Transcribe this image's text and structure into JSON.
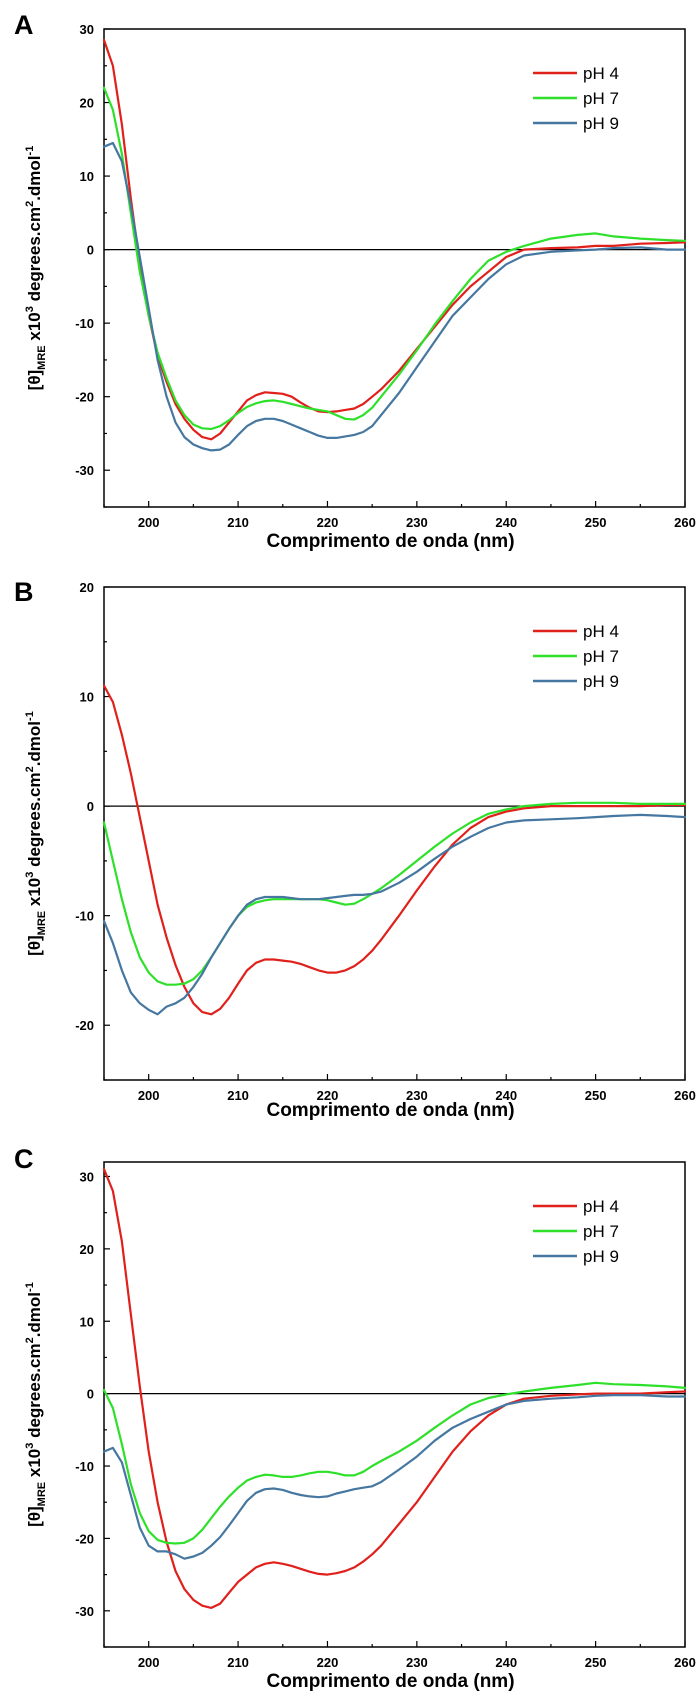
{
  "chart_data": [
    {
      "type": "line",
      "panel_label": "A",
      "xlabel": "Comprimento de onda (nm)",
      "ylabel_parts": {
        "main": "[θ]",
        "sub": "MRE",
        "times": " x10",
        "sup1": "3",
        "unit1": " degrees.cm",
        "sup2": "2",
        "unit2": ".dmol",
        "sup3": "-1"
      },
      "xlim": [
        195,
        260
      ],
      "ylim": [
        -35,
        30
      ],
      "xticks": [
        200,
        210,
        220,
        230,
        240,
        250,
        260
      ],
      "yticks": [
        -30,
        -20,
        -10,
        0,
        10,
        20,
        30
      ],
      "zero_line": true,
      "legend_position": "top-right",
      "series": [
        {
          "name": "pH 4",
          "color": "#e0201b",
          "x": [
            195,
            196,
            197,
            198,
            199,
            200,
            201,
            202,
            203,
            204,
            205,
            206,
            207,
            208,
            209,
            210,
            211,
            212,
            213,
            214,
            215,
            216,
            217,
            218,
            219,
            220,
            221,
            222,
            223,
            224,
            225,
            226,
            228,
            230,
            232,
            234,
            236,
            238,
            240,
            242,
            245,
            248,
            250,
            252,
            255,
            258,
            260
          ],
          "y": [
            28.5,
            25,
            17,
            7,
            -2,
            -9,
            -14.5,
            -18,
            -21,
            -23,
            -24.5,
            -25.5,
            -25.8,
            -25,
            -23.5,
            -22,
            -20.5,
            -19.8,
            -19.4,
            -19.5,
            -19.6,
            -20,
            -20.8,
            -21.5,
            -22,
            -22.1,
            -22,
            -21.8,
            -21.6,
            -21,
            -20,
            -19,
            -16.5,
            -13.5,
            -10.5,
            -7.5,
            -5,
            -3,
            -1,
            0,
            0.2,
            0.3,
            0.5,
            0.5,
            0.8,
            0.9,
            1.0
          ]
        },
        {
          "name": "pH 7",
          "color": "#2ee02a",
          "x": [
            195,
            196,
            197,
            198,
            199,
            200,
            201,
            202,
            203,
            204,
            205,
            206,
            207,
            208,
            209,
            210,
            211,
            212,
            213,
            214,
            215,
            216,
            217,
            218,
            219,
            220,
            221,
            222,
            223,
            224,
            225,
            226,
            228,
            230,
            232,
            234,
            236,
            238,
            240,
            242,
            245,
            248,
            250,
            252,
            255,
            258,
            260
          ],
          "y": [
            22,
            19,
            13,
            5,
            -3,
            -9,
            -14,
            -17.5,
            -20.5,
            -22.5,
            -23.8,
            -24.3,
            -24.4,
            -24,
            -23.2,
            -22.2,
            -21.4,
            -20.9,
            -20.6,
            -20.5,
            -20.7,
            -21,
            -21.3,
            -21.6,
            -21.8,
            -22,
            -22.5,
            -23,
            -23.1,
            -22.5,
            -21.5,
            -20,
            -17,
            -13.7,
            -10.2,
            -7,
            -4,
            -1.5,
            -0.3,
            0.5,
            1.5,
            2,
            2.2,
            1.8,
            1.5,
            1.3,
            1.2
          ]
        },
        {
          "name": "pH 9",
          "color": "#4577a0",
          "x": [
            195,
            196,
            197,
            198,
            199,
            200,
            201,
            202,
            203,
            204,
            205,
            206,
            207,
            208,
            209,
            210,
            211,
            212,
            213,
            214,
            215,
            216,
            217,
            218,
            219,
            220,
            221,
            222,
            223,
            224,
            225,
            226,
            228,
            230,
            232,
            234,
            236,
            238,
            240,
            242,
            245,
            248,
            250,
            252,
            255,
            258,
            260
          ],
          "y": [
            14,
            14.5,
            12,
            6,
            -1,
            -8,
            -15,
            -20,
            -23.5,
            -25.5,
            -26.5,
            -27,
            -27.3,
            -27.2,
            -26.5,
            -25.2,
            -24,
            -23.3,
            -23,
            -23,
            -23.3,
            -23.8,
            -24.3,
            -24.8,
            -25.3,
            -25.6,
            -25.6,
            -25.4,
            -25.2,
            -24.8,
            -24,
            -22.5,
            -19.5,
            -16,
            -12.5,
            -9,
            -6.5,
            -4,
            -2,
            -0.8,
            -0.3,
            -0.1,
            0,
            0.2,
            0.3,
            0,
            0
          ]
        }
      ]
    },
    {
      "type": "line",
      "panel_label": "B",
      "xlabel": "Comprimento de onda (nm)",
      "ylabel_parts": {
        "main": "[θ]",
        "sub": "MRE",
        "times": " x10",
        "sup1": "3",
        "unit1": " degrees.cm",
        "sup2": "2",
        "unit2": ".dmol",
        "sup3": "-1"
      },
      "xlim": [
        195,
        260
      ],
      "ylim": [
        -25,
        20
      ],
      "xticks": [
        200,
        210,
        220,
        230,
        240,
        250,
        260
      ],
      "yticks": [
        -20,
        -10,
        0,
        10,
        20
      ],
      "zero_line": true,
      "legend_position": "top-right",
      "series": [
        {
          "name": "pH 4",
          "color": "#e0201b",
          "x": [
            195,
            196,
            197,
            198,
            199,
            200,
            201,
            202,
            203,
            204,
            205,
            206,
            207,
            208,
            209,
            210,
            211,
            212,
            213,
            214,
            215,
            216,
            217,
            218,
            219,
            220,
            221,
            222,
            223,
            224,
            225,
            226,
            228,
            230,
            232,
            234,
            236,
            238,
            240,
            242,
            245,
            248,
            250,
            252,
            255,
            258,
            260
          ],
          "y": [
            11,
            9.5,
            6.5,
            3,
            -1,
            -5,
            -9,
            -12,
            -14.5,
            -16.5,
            -18,
            -18.8,
            -19,
            -18.5,
            -17.5,
            -16.2,
            -15,
            -14.3,
            -14,
            -14,
            -14.1,
            -14.2,
            -14.4,
            -14.7,
            -15,
            -15.2,
            -15.2,
            -15,
            -14.6,
            -14,
            -13.2,
            -12.2,
            -10,
            -7.7,
            -5.5,
            -3.5,
            -2,
            -1,
            -0.5,
            -0.2,
            0,
            0,
            0,
            0,
            0,
            0.1,
            0.1
          ]
        },
        {
          "name": "pH 7",
          "color": "#2ee02a",
          "x": [
            195,
            196,
            197,
            198,
            199,
            200,
            201,
            202,
            203,
            204,
            205,
            206,
            207,
            208,
            209,
            210,
            211,
            212,
            213,
            214,
            215,
            216,
            217,
            218,
            219,
            220,
            221,
            222,
            223,
            224,
            225,
            226,
            228,
            230,
            232,
            234,
            236,
            238,
            240,
            242,
            245,
            248,
            250,
            252,
            255,
            258,
            260
          ],
          "y": [
            -1.5,
            -5,
            -8.5,
            -11.5,
            -13.8,
            -15.2,
            -16,
            -16.3,
            -16.3,
            -16.2,
            -15.8,
            -15,
            -13.8,
            -12.5,
            -11.2,
            -10,
            -9.2,
            -8.8,
            -8.6,
            -8.5,
            -8.5,
            -8.5,
            -8.5,
            -8.5,
            -8.5,
            -8.6,
            -8.8,
            -9,
            -8.9,
            -8.5,
            -8,
            -7.5,
            -6.3,
            -5,
            -3.7,
            -2.5,
            -1.5,
            -0.7,
            -0.3,
            0,
            0.2,
            0.3,
            0.3,
            0.3,
            0.2,
            0.2,
            0.2
          ]
        },
        {
          "name": "pH 9",
          "color": "#4577a0",
          "x": [
            195,
            196,
            197,
            198,
            199,
            200,
            201,
            202,
            203,
            204,
            205,
            206,
            207,
            208,
            209,
            210,
            211,
            212,
            213,
            214,
            215,
            216,
            217,
            218,
            219,
            220,
            221,
            222,
            223,
            224,
            225,
            226,
            228,
            230,
            232,
            234,
            236,
            238,
            240,
            242,
            245,
            248,
            250,
            252,
            255,
            258,
            260
          ],
          "y": [
            -10.5,
            -12.5,
            -15,
            -17,
            -18,
            -18.6,
            -19,
            -18.3,
            -18,
            -17.5,
            -16.5,
            -15.3,
            -13.8,
            -12.5,
            -11.2,
            -10,
            -9,
            -8.5,
            -8.3,
            -8.3,
            -8.3,
            -8.4,
            -8.5,
            -8.5,
            -8.5,
            -8.4,
            -8.3,
            -8.2,
            -8.1,
            -8.1,
            -8,
            -7.8,
            -7,
            -6,
            -4.8,
            -3.7,
            -2.8,
            -2,
            -1.5,
            -1.3,
            -1.2,
            -1.1,
            -1.0,
            -0.9,
            -0.8,
            -0.9,
            -1.0
          ]
        }
      ]
    },
    {
      "type": "line",
      "panel_label": "C",
      "xlabel": "Comprimento de onda (nm)",
      "ylabel_parts": {
        "main": "[θ]",
        "sub": "MRE",
        "times": " x10",
        "sup1": "3",
        "unit1": " degrees.cm",
        "sup2": "2",
        "unit2": ".dmol",
        "sup3": "-1"
      },
      "xlim": [
        195,
        260
      ],
      "ylim": [
        -35,
        32
      ],
      "xticks": [
        200,
        210,
        220,
        230,
        240,
        250,
        260
      ],
      "yticks": [
        -30,
        -20,
        -10,
        0,
        10,
        20,
        30
      ],
      "zero_line": true,
      "legend_position": "top-right",
      "series": [
        {
          "name": "pH 4",
          "color": "#e0201b",
          "x": [
            195,
            196,
            197,
            198,
            199,
            200,
            201,
            202,
            203,
            204,
            205,
            206,
            207,
            208,
            209,
            210,
            211,
            212,
            213,
            214,
            215,
            216,
            217,
            218,
            219,
            220,
            221,
            222,
            223,
            224,
            225,
            226,
            228,
            230,
            232,
            234,
            236,
            238,
            240,
            242,
            245,
            248,
            250,
            252,
            255,
            258,
            260
          ],
          "y": [
            31,
            28,
            21,
            11,
            1,
            -8,
            -15,
            -20.5,
            -24.5,
            -27,
            -28.5,
            -29.3,
            -29.6,
            -29,
            -27.5,
            -26,
            -25,
            -24,
            -23.5,
            -23.3,
            -23.5,
            -23.8,
            -24.2,
            -24.6,
            -24.9,
            -25,
            -24.8,
            -24.5,
            -24,
            -23.2,
            -22.2,
            -21,
            -18,
            -15,
            -11.5,
            -8,
            -5.2,
            -3,
            -1.5,
            -0.7,
            -0.3,
            -0.1,
            0,
            0,
            0,
            0.2,
            0.3
          ]
        },
        {
          "name": "pH 7",
          "color": "#2ee02a",
          "x": [
            195,
            196,
            197,
            198,
            199,
            200,
            201,
            202,
            203,
            204,
            205,
            206,
            207,
            208,
            209,
            210,
            211,
            212,
            213,
            214,
            215,
            216,
            217,
            218,
            219,
            220,
            221,
            222,
            223,
            224,
            225,
            226,
            228,
            230,
            232,
            234,
            236,
            238,
            240,
            242,
            245,
            248,
            250,
            252,
            255,
            258,
            260
          ],
          "y": [
            0.5,
            -2,
            -7,
            -12.5,
            -16.5,
            -19,
            -20.2,
            -20.6,
            -20.7,
            -20.6,
            -20,
            -18.8,
            -17.2,
            -15.6,
            -14.2,
            -13,
            -12,
            -11.5,
            -11.2,
            -11.3,
            -11.5,
            -11.5,
            -11.3,
            -11,
            -10.8,
            -10.8,
            -11,
            -11.3,
            -11.3,
            -10.8,
            -10,
            -9.3,
            -8,
            -6.5,
            -4.7,
            -3,
            -1.5,
            -0.6,
            -0.1,
            0.3,
            0.8,
            1.2,
            1.5,
            1.3,
            1.2,
            1.0,
            0.8
          ]
        },
        {
          "name": "pH 9",
          "color": "#4577a0",
          "x": [
            195,
            196,
            197,
            198,
            199,
            200,
            201,
            202,
            203,
            204,
            205,
            206,
            207,
            208,
            209,
            210,
            211,
            212,
            213,
            214,
            215,
            216,
            217,
            218,
            219,
            220,
            221,
            222,
            223,
            224,
            225,
            226,
            228,
            230,
            232,
            234,
            236,
            238,
            240,
            242,
            245,
            248,
            250,
            252,
            255,
            258,
            260
          ],
          "y": [
            -8,
            -7.5,
            -9.5,
            -14,
            -18.5,
            -21,
            -21.8,
            -21.8,
            -22.2,
            -22.8,
            -22.5,
            -22,
            -21,
            -19.8,
            -18.2,
            -16.5,
            -14.8,
            -13.7,
            -13.2,
            -13.1,
            -13.3,
            -13.7,
            -14,
            -14.2,
            -14.3,
            -14.2,
            -13.8,
            -13.5,
            -13.2,
            -13,
            -12.8,
            -12.2,
            -10.5,
            -8.7,
            -6.5,
            -4.7,
            -3.5,
            -2.5,
            -1.5,
            -1,
            -0.7,
            -0.5,
            -0.3,
            -0.2,
            -0.2,
            -0.4,
            -0.4
          ]
        }
      ]
    }
  ]
}
